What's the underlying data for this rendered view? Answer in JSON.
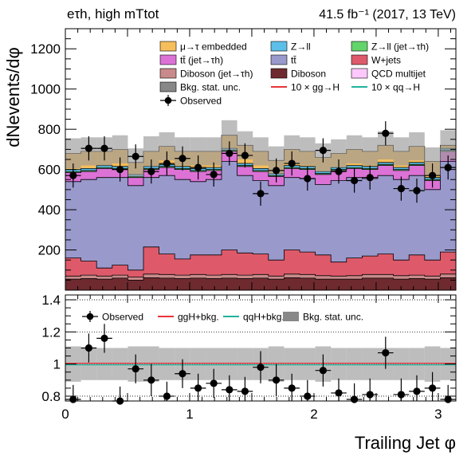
{
  "header": {
    "channel_label": "eτh, high mTtot",
    "lumi_label": "41.5 fb⁻¹ (2017, 13 TeV)"
  },
  "chart_data": [
    {
      "type": "stacked_histogram",
      "panel": "main",
      "ylabel": "dNevents/dφ",
      "ylim": [
        0,
        1300
      ],
      "yticks": [
        200,
        400,
        600,
        800,
        1000,
        1200
      ],
      "xlim": [
        0,
        3.1416
      ],
      "xticks": [
        0,
        1,
        2,
        3
      ],
      "xlabel": "Trailing Jet  φ",
      "legend": {
        "placement": "top",
        "entries": [
          {
            "label": "μ→τ embedded",
            "color": "#f6be5b",
            "kind": "fill"
          },
          {
            "label": "Z→ll",
            "color": "#5cbfe9",
            "kind": "fill"
          },
          {
            "label": "Z→ll (jet→τh)",
            "color": "#63d46b",
            "kind": "fill"
          },
          {
            "label": "tt̄ (jet→τh)",
            "color": "#dc72d6",
            "kind": "fill"
          },
          {
            "label": "tt̄",
            "color": "#9999cc",
            "kind": "fill"
          },
          {
            "label": "W+jets",
            "color": "#de5a6a",
            "kind": "fill"
          },
          {
            "label": "Diboson (jet→τh)",
            "color": "#c88a8a",
            "kind": "fill"
          },
          {
            "label": "Diboson",
            "color": "#6e2a2f",
            "kind": "fill"
          },
          {
            "label": "QCD multijet",
            "color": "#fdc8fc",
            "kind": "fill"
          },
          {
            "label": "Bkg. stat. unc.",
            "color": "#888888",
            "kind": "fill"
          },
          {
            "label": "10 × gg→H",
            "color": "#e8343a",
            "kind": "line"
          },
          {
            "label": "10 × qq→H",
            "color": "#1fb39c",
            "kind": "line"
          },
          {
            "label": "Observed",
            "color": "#000000",
            "kind": "marker"
          }
        ]
      },
      "bins": {
        "n": 25,
        "low": 0,
        "high": 3.1416
      },
      "stack_order": [
        "Diboson",
        "Diboson (jet→τh)",
        "W+jets",
        "tt̄",
        "tt̄ (jet→τh)",
        "Z→ll (jet→τh)",
        "Z→ll",
        "μ→τ embedded"
      ],
      "cumulative_tops": {
        "Diboson": [
          55,
          58,
          55,
          60,
          50,
          62,
          60,
          58,
          60,
          58,
          60,
          58,
          60,
          55,
          62,
          60,
          55,
          55,
          55,
          60,
          60,
          55,
          58,
          55,
          62
        ],
        "Diboson (jet→τh)": [
          70,
          75,
          70,
          75,
          65,
          80,
          78,
          75,
          78,
          75,
          78,
          75,
          78,
          70,
          80,
          78,
          72,
          70,
          72,
          78,
          78,
          72,
          75,
          70,
          80
        ],
        "W+jets": [
          160,
          145,
          110,
          125,
          100,
          215,
          180,
          155,
          175,
          175,
          200,
          185,
          180,
          150,
          200,
          190,
          175,
          140,
          160,
          170,
          180,
          150,
          175,
          150,
          190
        ],
        "tt̄": [
          540,
          550,
          560,
          560,
          520,
          560,
          570,
          550,
          540,
          550,
          640,
          570,
          545,
          520,
          560,
          555,
          525,
          545,
          560,
          555,
          570,
          550,
          570,
          500,
          640
        ],
        "tt̄ (jet→τh)": [
          585,
          590,
          605,
          600,
          560,
          600,
          610,
          600,
          590,
          595,
          690,
          615,
          590,
          565,
          605,
          600,
          575,
          595,
          605,
          600,
          620,
          595,
          620,
          545,
          690
        ],
        "Z→ll (jet→τh)": [
          590,
          595,
          610,
          605,
          565,
          605,
          615,
          605,
          595,
          600,
          695,
          620,
          595,
          570,
          610,
          605,
          580,
          600,
          610,
          605,
          625,
          600,
          625,
          550,
          695
        ],
        "Z→ll": [
          600,
          605,
          620,
          615,
          575,
          615,
          625,
          615,
          605,
          610,
          705,
          630,
          605,
          580,
          620,
          615,
          590,
          610,
          620,
          615,
          635,
          610,
          635,
          560,
          705
        ]
      },
      "total_background": [
        680,
        690,
        690,
        700,
        635,
        690,
        715,
        690,
        690,
        690,
        770,
        720,
        690,
        645,
        700,
        690,
        660,
        680,
        700,
        690,
        720,
        690,
        715,
        640,
        720
      ],
      "stat_unc": [
        75,
        70,
        70,
        70,
        70,
        75,
        70,
        70,
        70,
        70,
        75,
        70,
        70,
        70,
        70,
        70,
        70,
        70,
        70,
        70,
        70,
        70,
        70,
        70,
        75
      ],
      "observed": [
        570,
        705,
        705,
        600,
        665,
        590,
        630,
        655,
        610,
        575,
        680,
        670,
        480,
        595,
        630,
        555,
        695,
        590,
        545,
        560,
        780,
        505,
        495,
        570,
        610
      ],
      "observed_err": [
        60,
        60,
        60,
        60,
        60,
        60,
        60,
        60,
        60,
        60,
        60,
        60,
        60,
        60,
        60,
        60,
        60,
        60,
        60,
        60,
        60,
        60,
        60,
        60,
        60
      ]
    },
    {
      "type": "ratio",
      "panel": "ratio",
      "ylim": [
        0.77,
        1.43
      ],
      "yticks": [
        0.8,
        1,
        1.2,
        1.4
      ],
      "dotted_gridlines": [
        0.8,
        1,
        1.2,
        1.4
      ],
      "xlim": [
        0,
        3.1416
      ],
      "xticks": [
        0,
        1,
        2,
        3
      ],
      "legend": {
        "placement": "top",
        "entries": [
          {
            "label": "Observed",
            "color": "#000000",
            "kind": "marker"
          },
          {
            "label": "ggH+bkg.",
            "color": "#e8343a",
            "kind": "line"
          },
          {
            "label": "qqH+bkg.",
            "color": "#1fb39c",
            "kind": "line"
          },
          {
            "label": "Bkg. stat. unc.",
            "color": "#888888",
            "kind": "fill"
          }
        ]
      },
      "band_halfwidth": [
        0.11,
        0.1,
        0.1,
        0.1,
        0.11,
        0.11,
        0.1,
        0.1,
        0.1,
        0.1,
        0.1,
        0.1,
        0.1,
        0.11,
        0.1,
        0.1,
        0.11,
        0.1,
        0.1,
        0.1,
        0.1,
        0.1,
        0.1,
        0.11,
        0.1
      ],
      "observed": [
        0.78,
        1.1,
        1.16,
        0.77,
        0.97,
        0.9,
        0.8,
        0.94,
        0.85,
        0.88,
        0.84,
        0.83,
        0.98,
        0.9,
        0.85,
        0.8,
        0.96,
        0.82,
        0.78,
        0.81,
        1.07,
        0.81,
        0.83,
        0.85,
        0.78
      ],
      "observed_err": [
        0.09,
        0.09,
        0.09,
        0.09,
        0.09,
        0.1,
        0.09,
        0.09,
        0.09,
        0.09,
        0.09,
        0.09,
        0.1,
        0.1,
        0.09,
        0.1,
        0.1,
        0.09,
        0.1,
        0.1,
        0.1,
        0.1,
        0.1,
        0.1,
        0.09
      ]
    }
  ]
}
